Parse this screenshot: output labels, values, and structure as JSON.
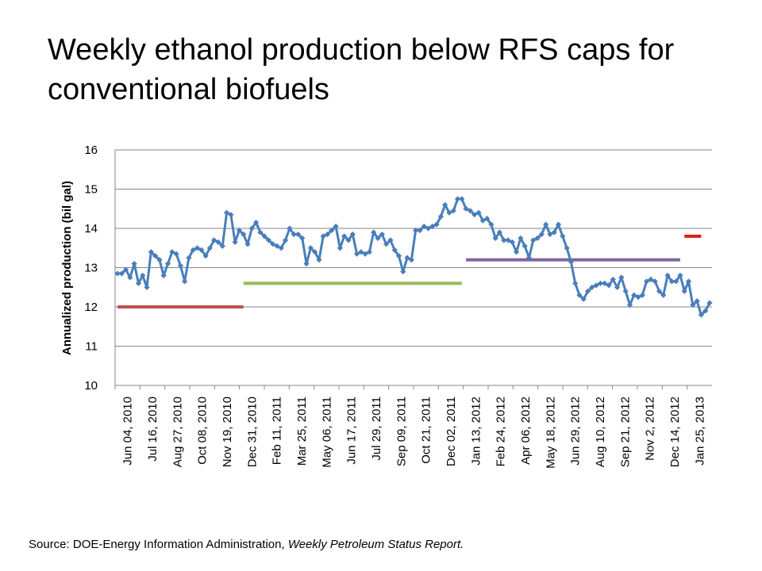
{
  "title": "Weekly ethanol production below RFS caps for conventional biofuels",
  "source": {
    "prefix": "Source:  DOE-Energy Information Administration, ",
    "italic": "Weekly Petroleum Status Report."
  },
  "chart_data": {
    "type": "line",
    "title": "Weekly ethanol production below RFS caps for conventional biofuels",
    "xlabel": "",
    "ylabel": "Annualized production (bil gal)",
    "ylim": [
      10,
      16
    ],
    "y_ticks": [
      10,
      11,
      12,
      13,
      14,
      15,
      16
    ],
    "grid": "horizontal major lines",
    "legend": "none",
    "x_tick_labels": [
      "Jun 04, 2010",
      "Jul 16, 2010",
      "Aug 27, 2010",
      "Oct 08, 2010",
      "Nov 19, 2010",
      "Dec 31, 2010",
      "Feb 11, 2011",
      "Mar 25, 2011",
      "May 06, 2011",
      "Jun 17, 2011",
      "Jul 29, 2011",
      "Sep 09, 2011",
      "Oct 21, 2011",
      "Dec 02, 2011",
      "Jan 13, 2012",
      "Feb 24, 2012",
      "Apr 06, 2012",
      "May 18, 2012",
      "Jun 29, 2012",
      "Aug 10, 2012",
      "Sep 21, 2012",
      "Nov 2, 2012",
      "Dec 14, 2012",
      "Jan 25, 2013"
    ],
    "series": [
      {
        "color": "#4a7ebb",
        "marker": "diamond",
        "values": [
          12.85,
          12.85,
          12.95,
          12.75,
          13.1,
          12.6,
          12.8,
          12.5,
          13.4,
          13.3,
          13.2,
          12.8,
          13.1,
          13.4,
          13.35,
          13.05,
          12.65,
          13.25,
          13.45,
          13.5,
          13.45,
          13.3,
          13.5,
          13.7,
          13.65,
          13.55,
          14.4,
          14.35,
          13.65,
          13.95,
          13.85,
          13.6,
          14.0,
          14.15,
          13.9,
          13.8,
          13.7,
          13.6,
          13.55,
          13.5,
          13.7,
          14.0,
          13.85,
          13.85,
          13.75,
          13.1,
          13.5,
          13.4,
          13.2,
          13.8,
          13.85,
          13.95,
          14.05,
          13.5,
          13.8,
          13.7,
          13.85,
          13.35,
          13.4,
          13.35,
          13.4,
          13.9,
          13.75,
          13.85,
          13.6,
          13.7,
          13.45,
          13.3,
          12.9,
          13.25,
          13.2,
          13.95,
          13.95,
          14.05,
          14.0,
          14.05,
          14.1,
          14.3,
          14.6,
          14.4,
          14.45,
          14.75,
          14.75,
          14.5,
          14.45,
          14.35,
          14.4,
          14.2,
          14.25,
          14.1,
          13.75,
          13.9,
          13.7,
          13.7,
          13.65,
          13.4,
          13.75,
          13.55,
          13.25,
          13.7,
          13.75,
          13.85,
          14.1,
          13.85,
          13.9,
          14.1,
          13.8,
          13.5,
          13.15,
          12.6,
          12.3,
          12.2,
          12.4,
          12.5,
          12.55,
          12.6,
          12.6,
          12.55,
          12.7,
          12.5,
          12.75,
          12.4,
          12.05,
          12.3,
          12.25,
          12.3,
          12.65,
          12.7,
          12.65,
          12.4,
          12.3,
          12.8,
          12.65,
          12.65,
          12.8,
          12.4,
          12.65,
          12.05,
          12.15,
          11.8,
          11.9,
          12.1
        ]
      }
    ],
    "reference_lines": [
      {
        "color": "#c0504d",
        "y": 12.0,
        "x_from": "Jun 04, 2010",
        "x_to": "Dec 31, 2010"
      },
      {
        "color": "#9bbb59",
        "y": 12.6,
        "x_from": "Dec 31, 2010",
        "x_to": "Dec 30, 2011"
      },
      {
        "color": "#8064a2",
        "y": 13.2,
        "x_from": "Jan 06, 2012",
        "x_to": "Dec 28, 2012"
      },
      {
        "color": "#e31a1c",
        "y": 13.8,
        "x_from": "Jan 04, 2013",
        "x_to": "Feb 01, 2013"
      }
    ]
  }
}
